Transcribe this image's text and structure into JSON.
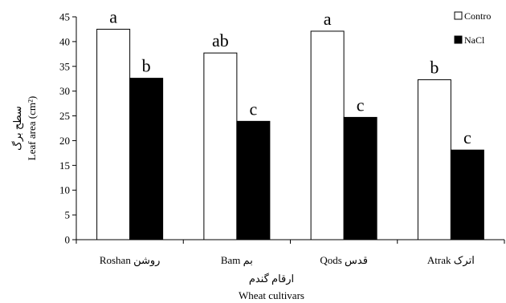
{
  "chart_data": {
    "type": "bar",
    "categories": [
      "Roshan روشن",
      "Bam بم",
      "Qods قدس",
      "Atrak اترک"
    ],
    "series": [
      {
        "name": "Contro",
        "values": [
          42.5,
          37.7,
          42.1,
          32.3
        ],
        "letters": [
          "a",
          "ab",
          "a",
          "b"
        ],
        "color": "#ffffff"
      },
      {
        "name": "NaCl",
        "values": [
          32.6,
          23.9,
          24.7,
          18.1
        ],
        "letters": [
          "b",
          "c",
          "c",
          "c"
        ],
        "color": "#000000"
      }
    ],
    "ylim": [
      0,
      45
    ],
    "yticks": [
      0,
      5,
      10,
      15,
      20,
      25,
      30,
      35,
      40,
      45
    ],
    "ylabel_fa": "سطح برگ",
    "ylabel": "Leaf area (cm²)",
    "xlabel_fa": "ارقام گندم",
    "xlabel": "Wheat cultivars",
    "legend_position": "top-right",
    "grid": false
  }
}
